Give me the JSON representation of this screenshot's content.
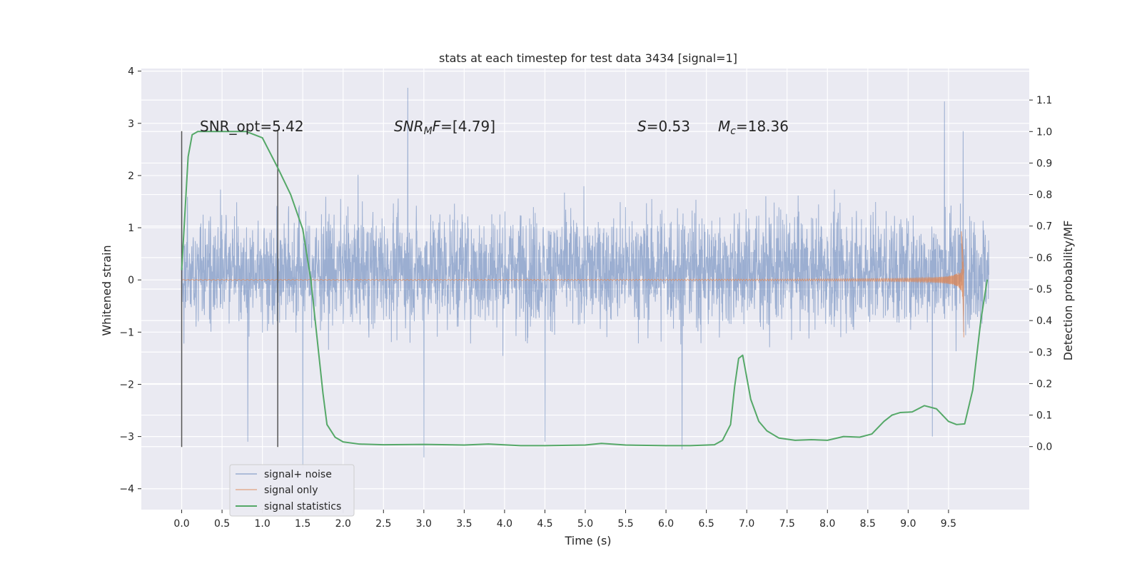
{
  "chart_data": {
    "type": "line",
    "title": "stats at each timestep for test data 3434 [signal=1]",
    "xlabel": "Time (s)",
    "ylabel": "Whitened strain",
    "ylabel_right": "Detection probability/MF",
    "xlim": [
      -0.5,
      10.5
    ],
    "ylim": [
      -4.4,
      4.05
    ],
    "ylim_right": [
      -0.2,
      1.2
    ],
    "grid": true,
    "xticks": [
      "0.0",
      "0.5",
      "1.0",
      "1.5",
      "2.0",
      "2.5",
      "3.0",
      "3.5",
      "4.0",
      "4.5",
      "5.0",
      "5.5",
      "6.0",
      "6.5",
      "7.0",
      "7.5",
      "8.0",
      "8.5",
      "9.0",
      "9.5"
    ],
    "xtick_values": [
      0,
      0.5,
      1,
      1.5,
      2,
      2.5,
      3,
      3.5,
      4,
      4.5,
      5,
      5.5,
      6,
      6.5,
      7,
      7.5,
      8,
      8.5,
      9,
      9.5
    ],
    "yticks_left": [
      "4",
      "3",
      "2",
      "1",
      "0",
      "−1",
      "−2",
      "−3",
      "−4"
    ],
    "ytick_values_left": [
      4,
      3,
      2,
      1,
      0,
      -1,
      -2,
      -3,
      -4
    ],
    "yticks_right": [
      "1.1",
      "1.0",
      "0.9",
      "0.8",
      "0.7",
      "0.6",
      "0.5",
      "0.4",
      "0.3",
      "0.2",
      "0.1",
      "0.0"
    ],
    "ytick_values_right": [
      1.1,
      1.0,
      0.9,
      0.8,
      0.7,
      0.6,
      0.5,
      0.4,
      0.3,
      0.2,
      0.1,
      0.0
    ],
    "colors": {
      "noise": "#4c72b0",
      "signal": "#dd8452",
      "stats": "#55a868",
      "background": "#eaeaf2",
      "marker": "#555555"
    },
    "annotations": {
      "snr_opt": "SNR_opt=5.42",
      "snr_mf": "=[4.79]",
      "snr_mf_symbol": "SNR",
      "snr_mf_sub": "M",
      "snr_mf_tail": "F",
      "s_symbol": "S",
      "s_value": "=0.53",
      "mc_symbol": "M",
      "mc_sub": "c",
      "mc_value": "=18.36"
    },
    "vertical_markers": [
      0.0,
      1.19
    ],
    "vertical_marker_range": [
      -3.2,
      2.85
    ],
    "series": [
      {
        "name": "signal+ noise",
        "kind": "noise",
        "x_range": [
          0.0,
          10.0
        ],
        "typical_envelope": [
          -1.7,
          2.1
        ],
        "extremes": [
          [
            0.0,
            2.55
          ],
          [
            2.8,
            3.68
          ],
          [
            3.0,
            -3.4
          ],
          [
            1.5,
            -3.6
          ],
          [
            6.2,
            -3.25
          ],
          [
            9.45,
            3.42
          ],
          [
            9.68,
            2.85
          ],
          [
            9.3,
            -3.0
          ],
          [
            0.82,
            -3.1
          ],
          [
            4.5,
            -3.1
          ]
        ]
      },
      {
        "name": "signal only",
        "kind": "chirp",
        "x_range": [
          0.0,
          9.69
        ],
        "peak": [
          9.66,
          0.93
        ],
        "trough": [
          9.69,
          -1.1
        ]
      },
      {
        "name": "signal statistics",
        "kind": "stat",
        "x": [
          0.0,
          0.08,
          0.13,
          0.2,
          0.3,
          0.5,
          0.8,
          1.0,
          1.1,
          1.2,
          1.35,
          1.5,
          1.6,
          1.7,
          1.75,
          1.8,
          1.9,
          2.0,
          2.2,
          2.5,
          3.0,
          3.5,
          3.8,
          4.2,
          4.5,
          5.0,
          5.2,
          5.5,
          6.0,
          6.3,
          6.6,
          6.7,
          6.8,
          6.85,
          6.9,
          6.95,
          7.05,
          7.15,
          7.25,
          7.4,
          7.6,
          7.8,
          8.0,
          8.2,
          8.4,
          8.55,
          8.7,
          8.8,
          8.9,
          9.05,
          9.2,
          9.35,
          9.5,
          9.6,
          9.7,
          9.8,
          9.9,
          9.98
        ],
        "y": [
          0.56,
          0.92,
          0.99,
          1.0,
          1.0,
          1.0,
          1.0,
          0.98,
          0.93,
          0.88,
          0.8,
          0.69,
          0.53,
          0.29,
          0.17,
          0.07,
          0.03,
          0.015,
          0.008,
          0.006,
          0.007,
          0.005,
          0.008,
          0.003,
          0.003,
          0.005,
          0.01,
          0.005,
          0.003,
          0.003,
          0.006,
          0.02,
          0.07,
          0.19,
          0.28,
          0.29,
          0.15,
          0.08,
          0.05,
          0.027,
          0.02,
          0.022,
          0.02,
          0.032,
          0.03,
          0.04,
          0.08,
          0.1,
          0.108,
          0.11,
          0.13,
          0.12,
          0.08,
          0.07,
          0.072,
          0.18,
          0.4,
          0.53
        ]
      }
    ],
    "legend": {
      "position": "lower-left",
      "entries": [
        "signal+ noise",
        "signal only",
        "signal statistics"
      ]
    }
  }
}
